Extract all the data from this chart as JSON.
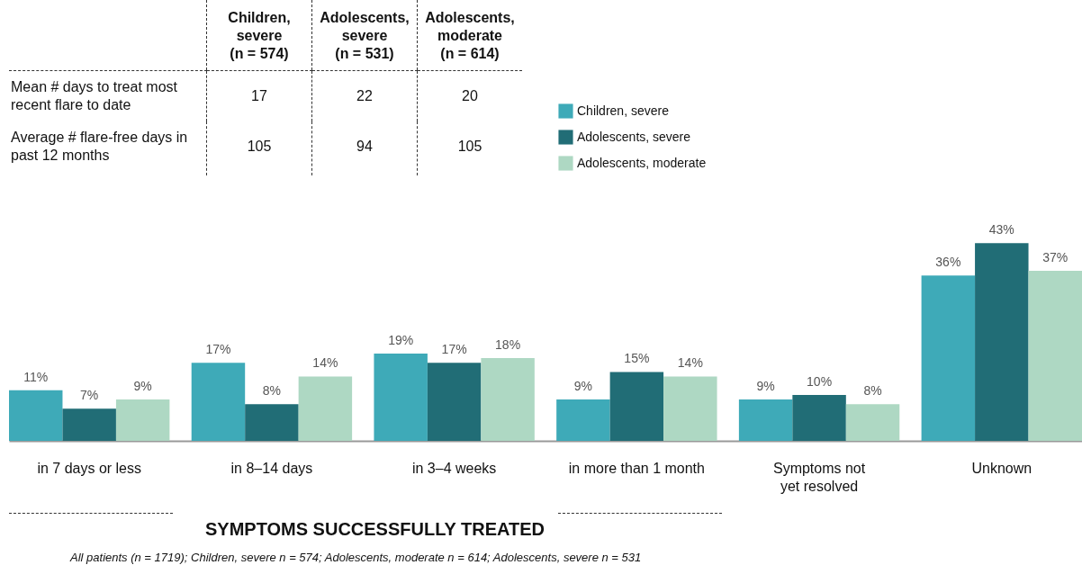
{
  "chart_data": [
    {
      "type": "heatmap",
      "categories": [
        "Children, severe (n = 574)",
        "Adolescents, severe (n = 531)",
        "Adolescents, moderate (n = 614)"
      ],
      "y_categories": [
        "Mean # days to treat most recent flare to date",
        "Average # flare-free days in past 12 months"
      ],
      "cells": [
        [
          17,
          22,
          20
        ],
        [
          105,
          94,
          105
        ]
      ],
      "data_labels": true
    },
    {
      "type": "bar",
      "xlabel": "SYMPTOMS SUCCESSFULLY TREATED",
      "categories": [
        "in 7 days or less",
        "in 8–14 days",
        "in 3–4 weeks",
        "in more than 1 month",
        "Symptoms not yet resolved",
        "Unknown"
      ],
      "series": [
        {
          "name": "Children, severe",
          "color": "#3eaab8",
          "values": [
            11,
            17,
            19,
            9,
            9,
            36
          ],
          "value_labels": [
            "11%",
            "17%",
            "19%",
            "9%",
            "9%",
            "36%"
          ]
        },
        {
          "name": "Adolescents, severe",
          "color": "#216d76",
          "values": [
            7,
            8,
            17,
            15,
            10,
            43
          ],
          "value_labels": [
            "7%",
            "8%",
            "17%",
            "15%",
            "10%",
            "43%"
          ]
        },
        {
          "name": "Adolescents, moderate",
          "color": "#aed8c3",
          "values": [
            9,
            14,
            18,
            14,
            8,
            37
          ],
          "value_labels": [
            "9%",
            "14%",
            "18%",
            "14%",
            "8%",
            "37%"
          ]
        }
      ],
      "legend": "top right",
      "tick_labels": "x",
      "grid": false,
      "annotations": [
        "All patients (n = 1719); Children, severe n = 574; Adolescents, moderate n = 614; Adolescents, severe n = 531"
      ]
    }
  ]
}
